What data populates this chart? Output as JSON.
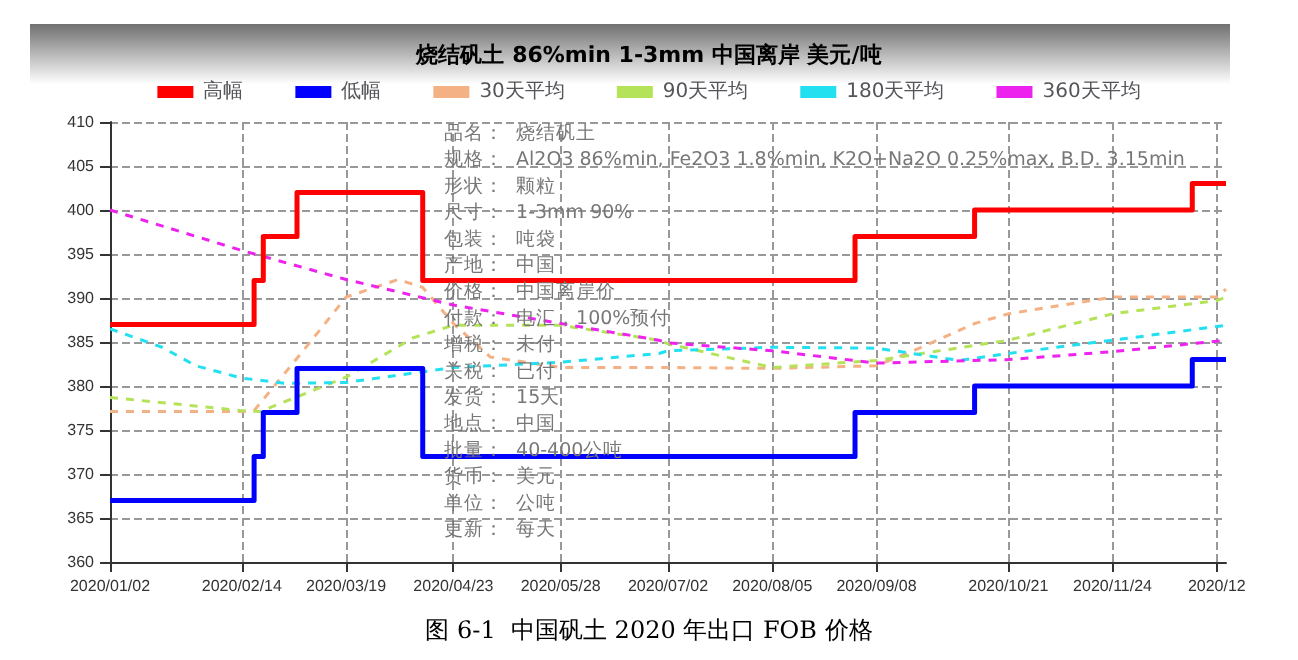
{
  "chart_data": {
    "type": "step",
    "title": "烧结矾土 86%min 1-3mm 中国离岸 美元/吨",
    "xlim": [
      "2020-01-02",
      "2020-12-31"
    ],
    "xticks": [
      {
        "value": "2020-01-02",
        "label": "2020/01/02"
      },
      {
        "value": "2020-02-14",
        "label": "2020/02/14"
      },
      {
        "value": "2020-03-19",
        "label": "2020/03/19"
      },
      {
        "value": "2020-04-23",
        "label": "2020/04/23"
      },
      {
        "value": "2020-05-28",
        "label": "2020/05/28"
      },
      {
        "value": "2020-07-02",
        "label": "2020/07/02"
      },
      {
        "value": "2020-08-05",
        "label": "2020/08/05"
      },
      {
        "value": "2020-09-08",
        "label": "2020/09/08"
      },
      {
        "value": "2020-10-21",
        "label": "2020/10/21"
      },
      {
        "value": "2020-11-24",
        "label": "2020/11/24"
      },
      {
        "value": "2020-12-28",
        "label": "2020/12"
      }
    ],
    "ylim": [
      360,
      410
    ],
    "yticks": [
      360,
      365,
      370,
      375,
      380,
      385,
      390,
      395,
      400,
      405,
      410
    ],
    "grid": true,
    "legend": "top",
    "marker": "none",
    "series": [
      {
        "name": "高幅",
        "color": "#ff0000",
        "x": [
          "2020-01-02",
          "2020-02-18",
          "2020-02-21",
          "2020-03-03",
          "2020-04-13",
          "2020-09-01",
          "2020-10-10",
          "2020-12-20",
          "2020-12-31"
        ],
        "values": [
          387,
          392,
          397,
          402,
          392,
          397,
          400,
          403,
          403
        ],
        "line_style": "solid"
      },
      {
        "name": "低幅",
        "color": "#0000ff",
        "x": [
          "2020-01-02",
          "2020-02-18",
          "2020-02-21",
          "2020-03-03",
          "2020-04-13",
          "2020-09-01",
          "2020-10-10",
          "2020-12-20",
          "2020-12-31"
        ],
        "values": [
          367,
          372,
          377,
          382,
          372,
          377,
          380,
          383,
          383
        ],
        "line_style": "solid"
      },
      {
        "name": "30天平均",
        "type": "line",
        "color": "#f4b183",
        "line_style": "dashed",
        "x": [
          "2020-01-02",
          "2020-02-14",
          "2020-02-18",
          "2020-03-05",
          "2020-03-19",
          "2020-04-05",
          "2020-04-13",
          "2020-04-23",
          "2020-05-05",
          "2020-05-28",
          "2020-07-02",
          "2020-08-05",
          "2020-09-08",
          "2020-09-20",
          "2020-10-10",
          "2020-10-21",
          "2020-11-24",
          "2020-12-28",
          "2020-12-31"
        ],
        "values": [
          377.1,
          377.1,
          377.2,
          384.0,
          390.1,
          392.1,
          391.2,
          387.1,
          383.3,
          382.1,
          382.1,
          382.0,
          382.3,
          384.0,
          387.1,
          388.2,
          390.1,
          390.1,
          391.0
        ]
      },
      {
        "name": "90天平均",
        "type": "line",
        "color": "#b4e35a",
        "line_style": "dashed",
        "x": [
          "2020-01-02",
          "2020-02-14",
          "2020-02-20",
          "2020-03-19",
          "2020-04-10",
          "2020-04-23",
          "2020-05-28",
          "2020-06-29",
          "2020-07-02",
          "2020-08-05",
          "2020-09-08",
          "2020-10-21",
          "2020-11-24",
          "2020-12-28",
          "2020-12-31"
        ],
        "values": [
          378.7,
          377.2,
          377.1,
          381.0,
          385.5,
          386.9,
          386.9,
          385.2,
          384.8,
          382.1,
          382.9,
          385.2,
          388.2,
          389.7,
          390.1
        ]
      },
      {
        "name": "180天平均",
        "type": "line",
        "color": "#22e0f0",
        "line_style": "dashed",
        "x": [
          "2020-01-02",
          "2020-01-19",
          "2020-01-30",
          "2020-02-14",
          "2020-02-28",
          "2020-03-19",
          "2020-04-23",
          "2020-05-28",
          "2020-06-29",
          "2020-07-02",
          "2020-08-05",
          "2020-09-08",
          "2020-10-05",
          "2020-10-21",
          "2020-11-24",
          "2020-12-31"
        ],
        "values": [
          386.5,
          384.4,
          382.3,
          380.9,
          380.3,
          380.4,
          382.1,
          382.7,
          383.7,
          384.0,
          384.4,
          384.3,
          382.9,
          383.7,
          385.2,
          386.9
        ]
      },
      {
        "name": "360天平均",
        "type": "line",
        "color": "#ee22ee",
        "line_style": "dashed",
        "x": [
          "2020-01-02",
          "2020-02-14",
          "2020-03-19",
          "2020-04-23",
          "2020-05-28",
          "2020-06-29",
          "2020-07-02",
          "2020-08-05",
          "2020-09-08",
          "2020-10-21",
          "2020-11-24",
          "2020-12-31"
        ],
        "values": [
          400.0,
          395.4,
          392.1,
          389.2,
          387.1,
          385.2,
          384.9,
          384.0,
          382.6,
          383.0,
          383.9,
          385.2
        ]
      }
    ],
    "annotations": [
      "品名：  烧结矾土",
      "规格：  Al2O3 86%min, Fe2O3 1.8%min, K2O+Na2O 0.25%max, B.D. 3.15min",
      "形状：  颗粒",
      "尺寸：  1-3mm 90%",
      "包装：  吨袋",
      "产地：  中国",
      "价格：  中国离岸价",
      "付款：  电汇，100%预付",
      "增税：  未付",
      "关税：  已付",
      "发货：  15天",
      "地点：  中国",
      "批量：  40-400公吨",
      "货币：  美元",
      "单位：  公吨",
      "更新：  每天",
      "图 6-1  中国矾土 2020 年出口 FOB 价格"
    ]
  }
}
